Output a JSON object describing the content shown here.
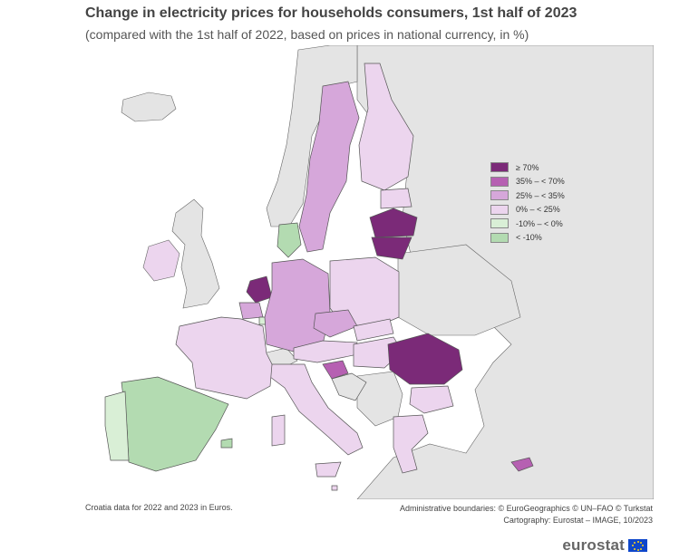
{
  "header": {
    "title": "Change in electricity prices for households consumers, 1st half of 2023",
    "subtitle": "(compared with the 1st half of 2022, based on prices in national currency, in %)"
  },
  "legend": {
    "items": [
      {
        "label": "≥ 70%",
        "color": "#7b2a78"
      },
      {
        "label": "35% – < 70%",
        "color": "#b660b2"
      },
      {
        "label": "25% – < 35%",
        "color": "#d6a7da"
      },
      {
        "label": "0% – < 25%",
        "color": "#ecd5ee"
      },
      {
        "label": "-10% – < 0%",
        "color": "#d9efd6"
      },
      {
        "label": "< -10%",
        "color": "#b3dbb1"
      }
    ]
  },
  "colors": {
    "non_eu_land": "#e4e4e4",
    "sea": "#ffffff",
    "border": "#555555"
  },
  "footer": {
    "note": "Croatia data for 2022 and 2023 in Euros.",
    "credits_line1": "Administrative boundaries: © EuroGeographics © UN–FAO © Turkstat",
    "credits_line2": "Cartography: Eurostat – IMAGE, 10/2023",
    "brand": "eurostat"
  }
}
